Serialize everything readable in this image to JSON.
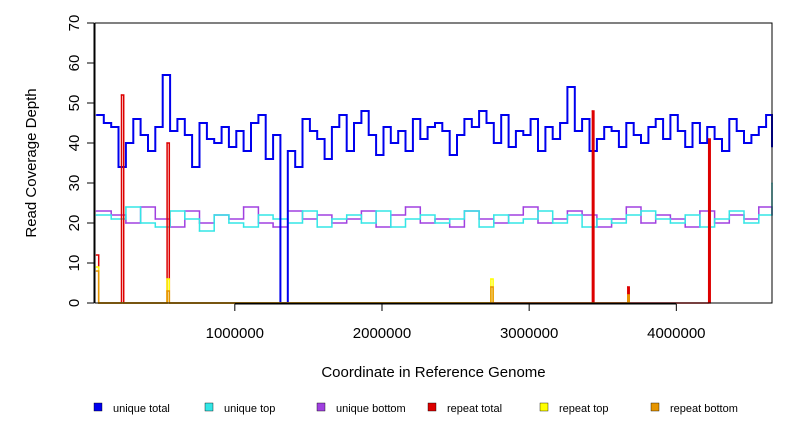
{
  "chart_data": {
    "type": "line",
    "xlabel": "Coordinate in Reference Genome",
    "ylabel": "Read Coverage Depth",
    "xlim": [
      50000,
      4650000
    ],
    "ylim": [
      0,
      70
    ],
    "x_ticks": [
      1000000,
      2000000,
      3000000,
      4000000
    ],
    "x_tick_labels": [
      "1000000",
      "2000000",
      "3000000",
      "4000000"
    ],
    "y_ticks": [
      0,
      10,
      20,
      30,
      40,
      50,
      60,
      70
    ],
    "y_tick_labels": [
      "0",
      "10",
      "20",
      "30",
      "40",
      "50",
      "60",
      "70"
    ],
    "legend_position": "bottom",
    "series": [
      {
        "name": "unique total",
        "color": "#0000ee",
        "x": [
          60000,
          110000,
          160000,
          210000,
          260000,
          310000,
          360000,
          410000,
          460000,
          510000,
          560000,
          610000,
          660000,
          710000,
          760000,
          810000,
          860000,
          910000,
          960000,
          1010000,
          1060000,
          1110000,
          1160000,
          1210000,
          1260000,
          1310000,
          1360000,
          1410000,
          1460000,
          1510000,
          1560000,
          1610000,
          1660000,
          1710000,
          1760000,
          1810000,
          1860000,
          1910000,
          1960000,
          2010000,
          2060000,
          2110000,
          2160000,
          2210000,
          2260000,
          2310000,
          2360000,
          2410000,
          2460000,
          2510000,
          2560000,
          2610000,
          2660000,
          2710000,
          2760000,
          2810000,
          2860000,
          2910000,
          2960000,
          3010000,
          3060000,
          3110000,
          3160000,
          3210000,
          3260000,
          3310000,
          3360000,
          3410000,
          3460000,
          3510000,
          3560000,
          3610000,
          3660000,
          3710000,
          3760000,
          3810000,
          3860000,
          3910000,
          3960000,
          4010000,
          4060000,
          4110000,
          4160000,
          4210000,
          4260000,
          4310000,
          4360000,
          4410000,
          4460000,
          4510000,
          4560000,
          4610000,
          4650000
        ],
        "values": [
          47,
          45,
          44,
          34,
          40,
          46,
          42,
          38,
          44,
          57,
          43,
          46,
          42,
          34,
          45,
          41,
          40,
          44,
          39,
          43,
          38,
          45,
          47,
          36,
          42,
          0,
          38,
          34,
          46,
          43,
          41,
          36,
          44,
          47,
          38,
          45,
          48,
          42,
          37,
          44,
          40,
          43,
          38,
          46,
          41,
          44,
          45,
          43,
          37,
          42,
          46,
          44,
          48,
          45,
          40,
          47,
          39,
          43,
          42,
          46,
          38,
          44,
          41,
          45,
          54,
          43,
          46,
          38,
          41,
          44,
          43,
          39,
          45,
          42,
          40,
          44,
          46,
          41,
          47,
          43,
          39,
          45,
          40,
          44,
          41,
          38,
          46,
          43,
          40,
          42,
          44,
          47,
          39
        ]
      },
      {
        "name": "unique top",
        "color": "#33e6e6",
        "x": [
          60000,
          160000,
          260000,
          360000,
          460000,
          560000,
          660000,
          760000,
          860000,
          960000,
          1060000,
          1160000,
          1260000,
          1360000,
          1460000,
          1560000,
          1660000,
          1760000,
          1860000,
          1960000,
          2060000,
          2160000,
          2260000,
          2360000,
          2460000,
          2560000,
          2660000,
          2760000,
          2860000,
          2960000,
          3060000,
          3160000,
          3260000,
          3360000,
          3460000,
          3560000,
          3660000,
          3760000,
          3860000,
          3960000,
          4060000,
          4160000,
          4260000,
          4360000,
          4460000,
          4560000,
          4650000
        ],
        "values": [
          22,
          21,
          24,
          20,
          19,
          23,
          21,
          18,
          22,
          20,
          19,
          22,
          21,
          20,
          23,
          19,
          21,
          22,
          20,
          23,
          19,
          21,
          22,
          20,
          21,
          23,
          19,
          22,
          20,
          21,
          23,
          20,
          22,
          19,
          21,
          20,
          22,
          23,
          21,
          20,
          22,
          19,
          21,
          23,
          20,
          22,
          30
        ]
      },
      {
        "name": "unique bottom",
        "color": "#a040e0",
        "x": [
          60000,
          160000,
          260000,
          360000,
          460000,
          560000,
          660000,
          760000,
          860000,
          960000,
          1060000,
          1160000,
          1260000,
          1360000,
          1460000,
          1560000,
          1660000,
          1760000,
          1860000,
          1960000,
          2060000,
          2160000,
          2260000,
          2360000,
          2460000,
          2560000,
          2660000,
          2760000,
          2860000,
          2960000,
          3060000,
          3160000,
          3260000,
          3360000,
          3460000,
          3560000,
          3660000,
          3760000,
          3860000,
          3960000,
          4060000,
          4160000,
          4260000,
          4360000,
          4460000,
          4560000,
          4650000
        ],
        "values": [
          23,
          22,
          20,
          24,
          21,
          19,
          23,
          20,
          22,
          21,
          24,
          20,
          19,
          23,
          21,
          22,
          20,
          21,
          23,
          19,
          22,
          24,
          20,
          21,
          19,
          23,
          21,
          20,
          22,
          24,
          20,
          21,
          23,
          22,
          19,
          21,
          24,
          20,
          22,
          21,
          19,
          23,
          20,
          22,
          21,
          24,
          22
        ]
      },
      {
        "name": "repeat total",
        "color": "#dd0000",
        "x": [
          60000,
          75000,
          230000,
          245000,
          540000,
          555000,
          3430000,
          3440000,
          3670000,
          3680000,
          4220000,
          4230000
        ],
        "values": [
          12,
          0,
          52,
          0,
          40,
          0,
          48,
          0,
          4,
          0,
          41,
          0
        ]
      },
      {
        "name": "repeat top",
        "color": "#ffff00",
        "x": [
          60000,
          75000,
          540000,
          555000,
          2740000,
          2755000
        ],
        "values": [
          9,
          0,
          6,
          0,
          6,
          0
        ]
      },
      {
        "name": "repeat bottom",
        "color": "#e69500",
        "x": [
          60000,
          75000,
          540000,
          555000,
          2740000,
          2755000,
          3670000,
          3680000
        ],
        "values": [
          8,
          0,
          3,
          0,
          4,
          0,
          2,
          0
        ]
      }
    ]
  }
}
